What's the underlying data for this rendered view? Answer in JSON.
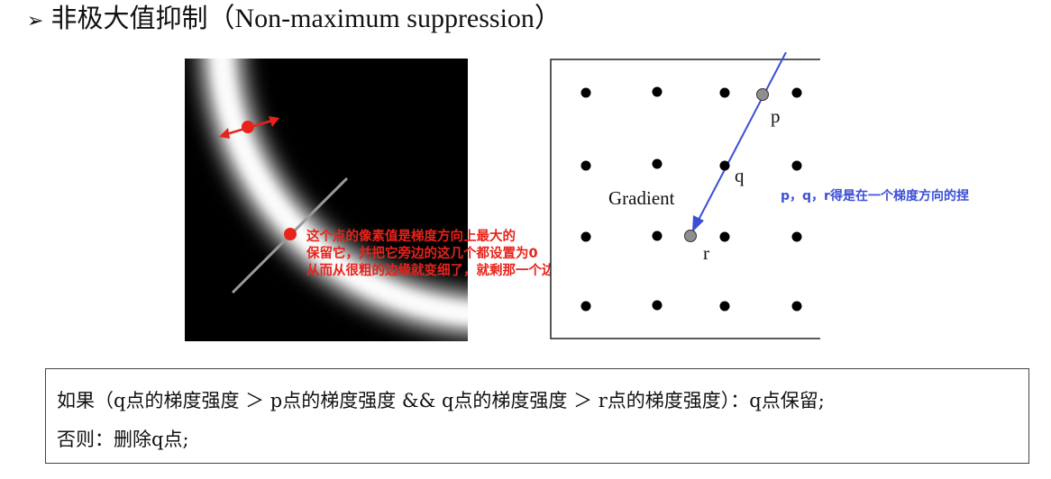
{
  "title": {
    "bullet": "➢",
    "main": "非极大值抑制",
    "subtitle": "（Non-maximum suppression）"
  },
  "edge_annotation": {
    "lines": [
      "这个点的像素值是梯度方向上最大的",
      "保留它，并把它旁边的这几个都设置为0",
      "从而从很粗的边缘就变细了，就剩那一个边缘像素点喽"
    ]
  },
  "gradient_figure": {
    "gradient_label": "Gradient",
    "p_label": "p",
    "q_label": "q",
    "r_label": "r"
  },
  "side_note": "p，q，r得是在一个梯度方向的捏",
  "rule": {
    "line1": "如果（q点的梯度强度 ＞ p点的梯度强度 && q点的梯度强度 ＞ r点的梯度强度）：q点保留;",
    "line2": "否则：删除q点;"
  },
  "colors": {
    "annotation_red": "#e8231b",
    "gradient_blue": "#3b4fd6",
    "highlight_gray": "#8f8f8f"
  }
}
